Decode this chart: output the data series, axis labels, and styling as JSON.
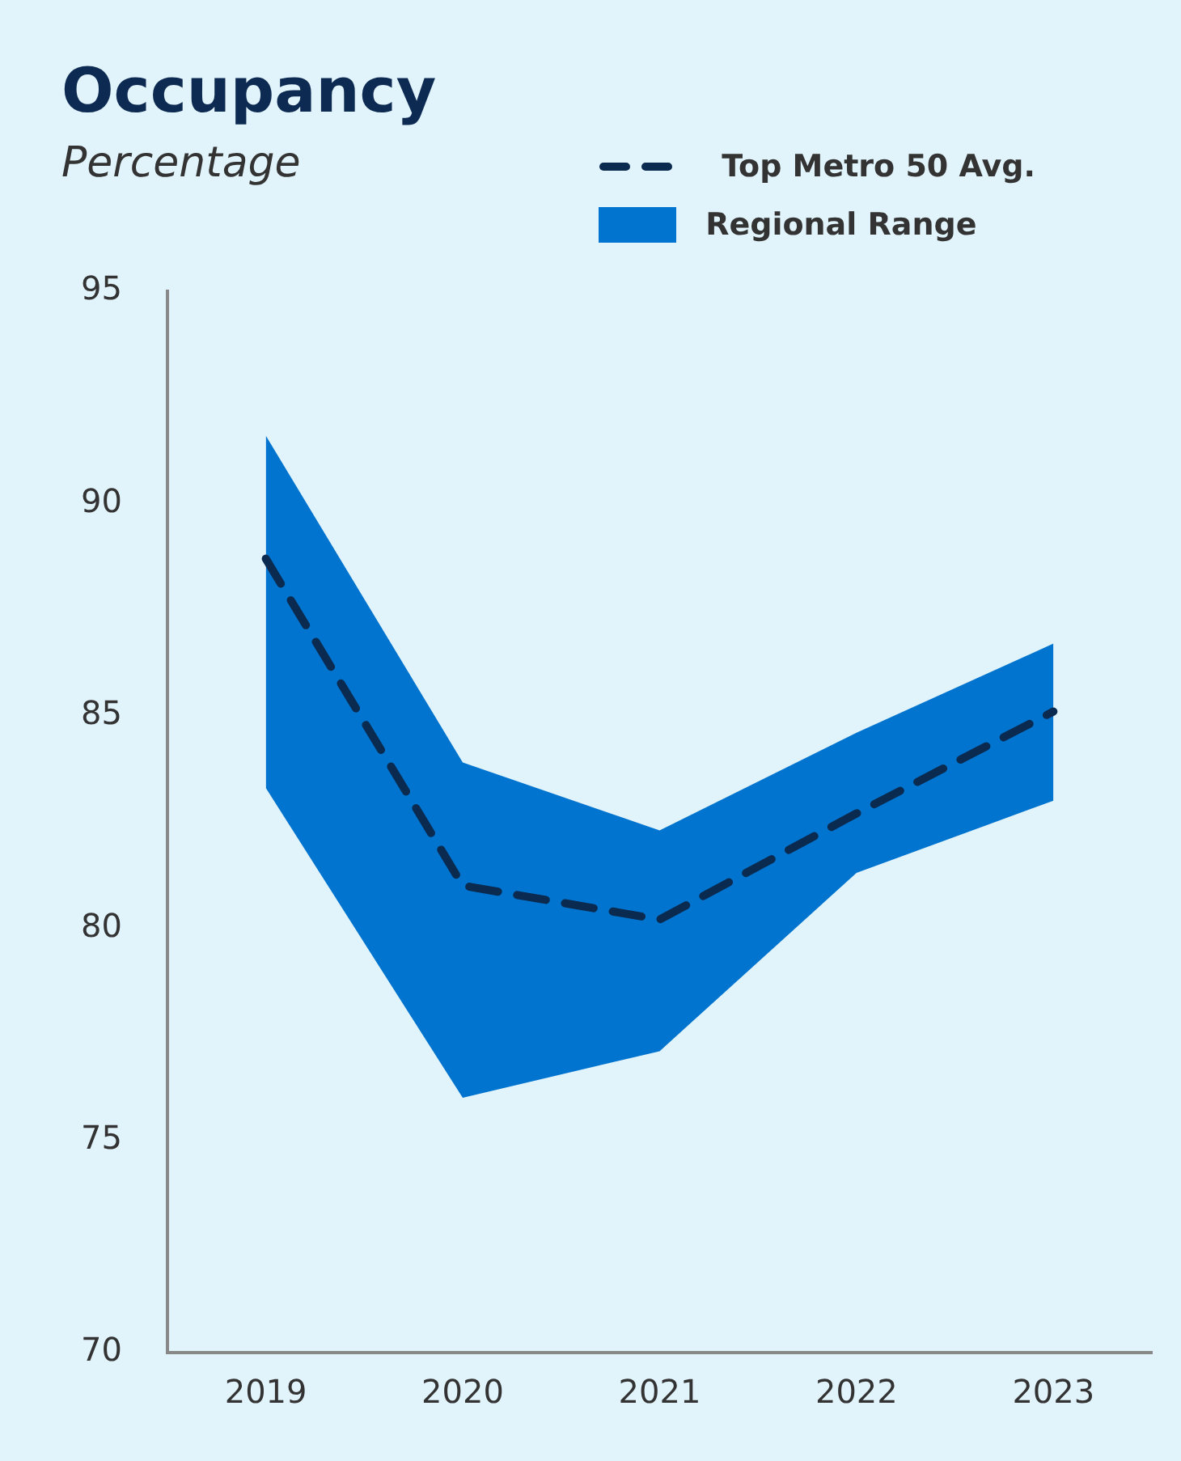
{
  "chart_data": {
    "type": "line",
    "title": "Occupancy",
    "subtitle": "Percentage",
    "categories": [
      "2019",
      "2020",
      "2021",
      "2022",
      "2023"
    ],
    "series": [
      {
        "name": "Top Metro 50 Avg.",
        "type": "line",
        "color": "#0a2a4f",
        "line_style": "dashed",
        "values": [
          88.7,
          81.0,
          80.2,
          82.7,
          85.1
        ]
      },
      {
        "name": "Regional Range",
        "type": "area",
        "color": "#0074cf",
        "values": [
          null,
          null,
          null,
          null,
          null
        ],
        "lower": [
          83.3,
          76.0,
          77.1,
          81.3,
          83.0
        ],
        "upper": [
          91.6,
          83.9,
          82.3,
          84.6,
          86.7
        ]
      }
    ],
    "ylim": [
      70,
      95
    ],
    "yticks": [
      70,
      75,
      80,
      85,
      90,
      95
    ],
    "grid": false,
    "legend": "top right",
    "marker": "none"
  }
}
